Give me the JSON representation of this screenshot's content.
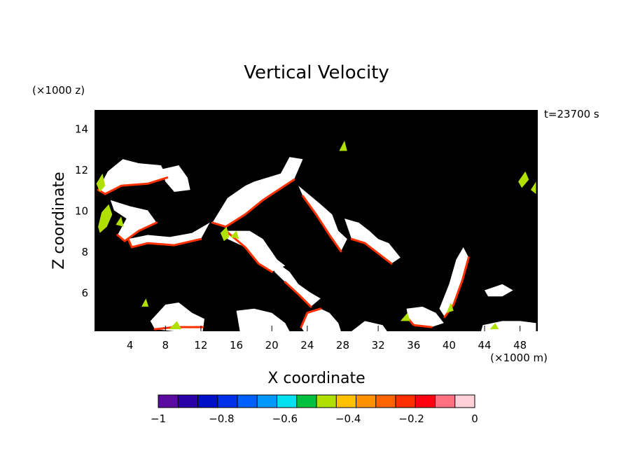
{
  "chart_data": {
    "type": "heatmap",
    "title": "Vertical Velocity",
    "xlabel": "X coordinate",
    "ylabel": "Z coordinate",
    "x_unit": "(×1000 m)",
    "y_unit": "(×1000 z)",
    "time_label": "t=23700 s",
    "xlim": [
      0,
      50
    ],
    "ylim": [
      4.1,
      14.9
    ],
    "x_ticks": [
      4,
      8,
      12,
      16,
      20,
      24,
      28,
      32,
      36,
      40,
      44,
      48
    ],
    "y_ticks": [
      6,
      8,
      10,
      12,
      14
    ],
    "colorbar": {
      "range": [
        -1,
        0
      ],
      "tick_values": [
        -1,
        -0.8,
        -0.6,
        -0.4,
        -0.2,
        0
      ],
      "tick_labels": [
        "−1",
        "−0.8",
        "−0.6",
        "−0.4",
        "−0.2",
        "0"
      ],
      "colors": [
        "#5a0aa0",
        "#2a00a8",
        "#0010c8",
        "#0030e8",
        "#0060ff",
        "#0098ff",
        "#00e0f0",
        "#00c040",
        "#b0e000",
        "#ffc000",
        "#ff9000",
        "#ff6400",
        "#ff3000",
        "#ff0010",
        "#ff7080",
        "#ffd0d8"
      ]
    },
    "background_color": "#000000",
    "near_zero_color": "#ffffff",
    "regions": [
      {
        "kind": "band",
        "value": -0.05,
        "points": [
          [
            0.4,
            11.0
          ],
          [
            1.5,
            11.9
          ],
          [
            3.2,
            12.5
          ],
          [
            5,
            12.3
          ],
          [
            7.5,
            12.2
          ],
          [
            8.2,
            11.6
          ],
          [
            6,
            11.3
          ],
          [
            3,
            11.2
          ],
          [
            1.2,
            10.8
          ]
        ]
      },
      {
        "kind": "band",
        "value": -0.05,
        "points": [
          [
            7.5,
            12.0
          ],
          [
            9.5,
            12.2
          ],
          [
            10.5,
            11.6
          ],
          [
            10.8,
            11.0
          ],
          [
            9,
            10.9
          ],
          [
            8,
            11.4
          ]
        ]
      },
      {
        "kind": "band",
        "value": -0.05,
        "points": [
          [
            13.3,
            9.4
          ],
          [
            15,
            10.6
          ],
          [
            17,
            11.2
          ],
          [
            18,
            11.4
          ],
          [
            21,
            11.8
          ],
          [
            22,
            12.6
          ],
          [
            23.5,
            12.5
          ],
          [
            22.5,
            11.5
          ],
          [
            19,
            10.5
          ],
          [
            17,
            9.8
          ],
          [
            14.8,
            9.2
          ]
        ]
      },
      {
        "kind": "band",
        "value": -0.05,
        "points": [
          [
            1.8,
            10.5
          ],
          [
            4,
            10.2
          ],
          [
            6,
            10.0
          ],
          [
            7,
            9.4
          ],
          [
            5,
            9.0
          ],
          [
            3.4,
            8.5
          ],
          [
            2.6,
            8.8
          ],
          [
            3.6,
            9.6
          ],
          [
            2.2,
            10.0
          ]
        ]
      },
      {
        "kind": "band",
        "value": -0.05,
        "points": [
          [
            3.8,
            8.6
          ],
          [
            6,
            8.8
          ],
          [
            8.5,
            8.7
          ],
          [
            11,
            8.9
          ],
          [
            13,
            9.4
          ],
          [
            12,
            8.6
          ],
          [
            9,
            8.3
          ],
          [
            6,
            8.4
          ],
          [
            4.2,
            8.2
          ]
        ]
      },
      {
        "kind": "band",
        "value": -0.05,
        "points": [
          [
            14.8,
            9.0
          ],
          [
            17.5,
            9.0
          ],
          [
            19,
            8.6
          ],
          [
            19.8,
            8.1
          ],
          [
            20.6,
            7.6
          ],
          [
            21.5,
            7.3
          ],
          [
            20,
            7.0
          ],
          [
            18.5,
            7.4
          ],
          [
            17,
            8.2
          ],
          [
            15,
            8.6
          ]
        ]
      },
      {
        "kind": "band",
        "value": -0.05,
        "points": [
          [
            23,
            11.2
          ],
          [
            25.5,
            10.3
          ],
          [
            26.8,
            9.8
          ],
          [
            27.5,
            9.0
          ],
          [
            28.5,
            8.6
          ],
          [
            27.8,
            8.0
          ],
          [
            26.5,
            8.8
          ],
          [
            25,
            9.8
          ],
          [
            23.5,
            10.7
          ]
        ]
      },
      {
        "kind": "band",
        "value": -0.05,
        "points": [
          [
            28.2,
            9.6
          ],
          [
            29.8,
            9.4
          ],
          [
            31,
            9.0
          ],
          [
            32,
            8.6
          ],
          [
            33.2,
            8.4
          ],
          [
            34.5,
            7.7
          ],
          [
            33.5,
            7.4
          ],
          [
            32,
            7.9
          ],
          [
            30.5,
            8.4
          ],
          [
            29,
            8.6
          ]
        ]
      },
      {
        "kind": "band",
        "value": -0.05,
        "points": [
          [
            20.4,
            7.5
          ],
          [
            22,
            7.0
          ],
          [
            23,
            6.4
          ],
          [
            24.3,
            6.0
          ],
          [
            25.5,
            5.7
          ],
          [
            24.4,
            5.3
          ],
          [
            23,
            5.9
          ],
          [
            21.5,
            6.5
          ],
          [
            20.3,
            7.0
          ]
        ]
      },
      {
        "kind": "band",
        "value": -0.05,
        "points": [
          [
            38.9,
            5.2
          ],
          [
            40,
            6.4
          ],
          [
            40.8,
            7.6
          ],
          [
            41.6,
            8.2
          ],
          [
            42.2,
            7.7
          ],
          [
            41.5,
            6.6
          ],
          [
            40.5,
            5.4
          ],
          [
            39.5,
            4.8
          ]
        ]
      },
      {
        "kind": "band",
        "value": -0.05,
        "points": [
          [
            35.2,
            5.2
          ],
          [
            37,
            5.3
          ],
          [
            38.5,
            5.0
          ],
          [
            39.4,
            4.5
          ],
          [
            38,
            4.3
          ],
          [
            36,
            4.4
          ],
          [
            35.4,
            4.7
          ]
        ]
      },
      {
        "kind": "band",
        "value": -0.05,
        "points": [
          [
            6.3,
            4.6
          ],
          [
            8,
            5.4
          ],
          [
            9.5,
            5.5
          ],
          [
            11,
            5.0
          ],
          [
            12.4,
            4.7
          ],
          [
            12.2,
            4.1
          ],
          [
            9,
            4.1
          ],
          [
            6.8,
            4.2
          ]
        ]
      },
      {
        "kind": "band",
        "value": -0.05,
        "points": [
          [
            16,
            5.1
          ],
          [
            18,
            5.2
          ],
          [
            20,
            5.0
          ],
          [
            21.5,
            4.5
          ],
          [
            22,
            4.1
          ],
          [
            16.4,
            4.1
          ]
        ]
      },
      {
        "kind": "band",
        "value": -0.05,
        "points": [
          [
            23.3,
            4.3
          ],
          [
            24,
            5.0
          ],
          [
            25.5,
            5.2
          ],
          [
            26.5,
            5.0
          ],
          [
            27.5,
            4.5
          ],
          [
            27.8,
            4.1
          ],
          [
            23.6,
            4.1
          ]
        ]
      },
      {
        "kind": "band",
        "value": -0.05,
        "points": [
          [
            29,
            4.1
          ],
          [
            30.5,
            4.6
          ],
          [
            32.5,
            4.4
          ],
          [
            33,
            4.1
          ]
        ]
      },
      {
        "kind": "band",
        "value": -0.05,
        "points": [
          [
            43.8,
            4.4
          ],
          [
            46,
            4.6
          ],
          [
            48,
            4.6
          ],
          [
            49.8,
            4.5
          ],
          [
            49.8,
            4.1
          ],
          [
            43.6,
            4.1
          ]
        ]
      },
      {
        "kind": "band",
        "value": -0.05,
        "points": [
          [
            44,
            6.1
          ],
          [
            46,
            6.4
          ],
          [
            47.2,
            6.1
          ],
          [
            46,
            5.8
          ],
          [
            44.4,
            5.8
          ]
        ]
      },
      {
        "kind": "edge",
        "value": -0.2,
        "points": [
          [
            0.4,
            11.0
          ],
          [
            1.2,
            10.8
          ],
          [
            3,
            11.2
          ],
          [
            6,
            11.3
          ],
          [
            8.2,
            11.6
          ]
        ]
      },
      {
        "kind": "edge",
        "value": -0.2,
        "points": [
          [
            13.3,
            9.4
          ],
          [
            14.8,
            9.2
          ],
          [
            17,
            9.8
          ],
          [
            19,
            10.5
          ],
          [
            22.5,
            11.5
          ]
        ]
      },
      {
        "kind": "edge",
        "value": -0.2,
        "points": [
          [
            14.8,
            9.0
          ],
          [
            17,
            8.2
          ],
          [
            18.5,
            7.4
          ],
          [
            20,
            7.0
          ]
        ]
      },
      {
        "kind": "edge",
        "value": -0.2,
        "points": [
          [
            23.5,
            10.7
          ],
          [
            25,
            9.8
          ],
          [
            26.5,
            8.8
          ],
          [
            27.8,
            8.0
          ]
        ]
      },
      {
        "kind": "edge",
        "value": -0.2,
        "points": [
          [
            29,
            8.6
          ],
          [
            30.5,
            8.4
          ],
          [
            32,
            7.9
          ],
          [
            33.5,
            7.4
          ]
        ]
      },
      {
        "kind": "edge",
        "value": -0.2,
        "points": [
          [
            21.5,
            6.5
          ],
          [
            23,
            5.9
          ],
          [
            24.4,
            5.3
          ]
        ]
      },
      {
        "kind": "edge",
        "value": -0.2,
        "points": [
          [
            39.5,
            4.8
          ],
          [
            40.5,
            5.4
          ],
          [
            41.5,
            6.6
          ],
          [
            42.2,
            7.7
          ]
        ]
      },
      {
        "kind": "edge",
        "value": -0.2,
        "points": [
          [
            35.4,
            4.7
          ],
          [
            36,
            4.4
          ],
          [
            38,
            4.3
          ]
        ]
      },
      {
        "kind": "edge",
        "value": -0.2,
        "points": [
          [
            6.8,
            4.2
          ],
          [
            9,
            4.3
          ],
          [
            12.2,
            4.3
          ]
        ]
      },
      {
        "kind": "edge",
        "value": -0.2,
        "points": [
          [
            3.8,
            8.6
          ],
          [
            4.2,
            8.2
          ],
          [
            6,
            8.4
          ],
          [
            9,
            8.3
          ],
          [
            12,
            8.6
          ]
        ]
      },
      {
        "kind": "edge",
        "value": -0.2,
        "points": [
          [
            2.6,
            8.8
          ],
          [
            3.4,
            8.5
          ],
          [
            5,
            9.0
          ],
          [
            7,
            9.4
          ]
        ]
      },
      {
        "kind": "edge",
        "value": -0.2,
        "points": [
          [
            23.3,
            4.3
          ],
          [
            24,
            5.0
          ],
          [
            25.5,
            5.2
          ]
        ]
      },
      {
        "kind": "blob",
        "value": -0.5,
        "points": [
          [
            0.4,
            9.2
          ],
          [
            0.8,
            9.9
          ],
          [
            1.6,
            10.3
          ],
          [
            2.0,
            9.8
          ],
          [
            1.4,
            9.2
          ],
          [
            0.6,
            8.9
          ]
        ]
      },
      {
        "kind": "blob",
        "value": -0.5,
        "points": [
          [
            0.2,
            11.3
          ],
          [
            0.9,
            11.8
          ],
          [
            1.2,
            11.2
          ],
          [
            0.6,
            10.9
          ]
        ]
      },
      {
        "kind": "blob",
        "value": -0.5,
        "points": [
          [
            14.2,
            8.9
          ],
          [
            14.9,
            9.2
          ],
          [
            15.2,
            8.7
          ],
          [
            14.6,
            8.5
          ]
        ]
      },
      {
        "kind": "blob",
        "value": -0.5,
        "points": [
          [
            47.8,
            11.4
          ],
          [
            48.6,
            11.9
          ],
          [
            49.0,
            11.5
          ],
          [
            48.2,
            11.1
          ]
        ]
      },
      {
        "kind": "blob",
        "value": -0.5,
        "points": [
          [
            49.2,
            11.0
          ],
          [
            49.8,
            11.4
          ],
          [
            49.8,
            10.8
          ]
        ]
      },
      {
        "kind": "blob",
        "value": -0.5,
        "points": [
          [
            8.4,
            4.2
          ],
          [
            9.3,
            4.6
          ],
          [
            9.8,
            4.2
          ]
        ]
      },
      {
        "kind": "blob",
        "value": -0.5,
        "points": [
          [
            34.5,
            4.6
          ],
          [
            35.3,
            5.0
          ],
          [
            35.6,
            4.6
          ]
        ]
      },
      {
        "kind": "blob",
        "value": -0.5,
        "points": [
          [
            27.6,
            12.9
          ],
          [
            28.2,
            13.4
          ],
          [
            28.5,
            12.9
          ]
        ]
      },
      {
        "kind": "blob",
        "value": -0.5,
        "points": [
          [
            39.7,
            5.0
          ],
          [
            40.2,
            5.5
          ],
          [
            40.5,
            5.1
          ]
        ]
      },
      {
        "kind": "blob",
        "value": -0.5,
        "points": [
          [
            44.6,
            4.2
          ],
          [
            45.2,
            4.5
          ],
          [
            45.6,
            4.2
          ]
        ]
      },
      {
        "kind": "blob",
        "value": -0.5,
        "points": [
          [
            15.3,
            8.7
          ],
          [
            16.0,
            9.0
          ],
          [
            16.3,
            8.6
          ]
        ]
      },
      {
        "kind": "blob",
        "value": -0.5,
        "points": [
          [
            2.4,
            9.3
          ],
          [
            3.0,
            9.7
          ],
          [
            3.3,
            9.2
          ]
        ]
      },
      {
        "kind": "blob",
        "value": -0.5,
        "points": [
          [
            5.3,
            5.3
          ],
          [
            5.8,
            5.7
          ],
          [
            6.1,
            5.3
          ]
        ]
      }
    ]
  }
}
